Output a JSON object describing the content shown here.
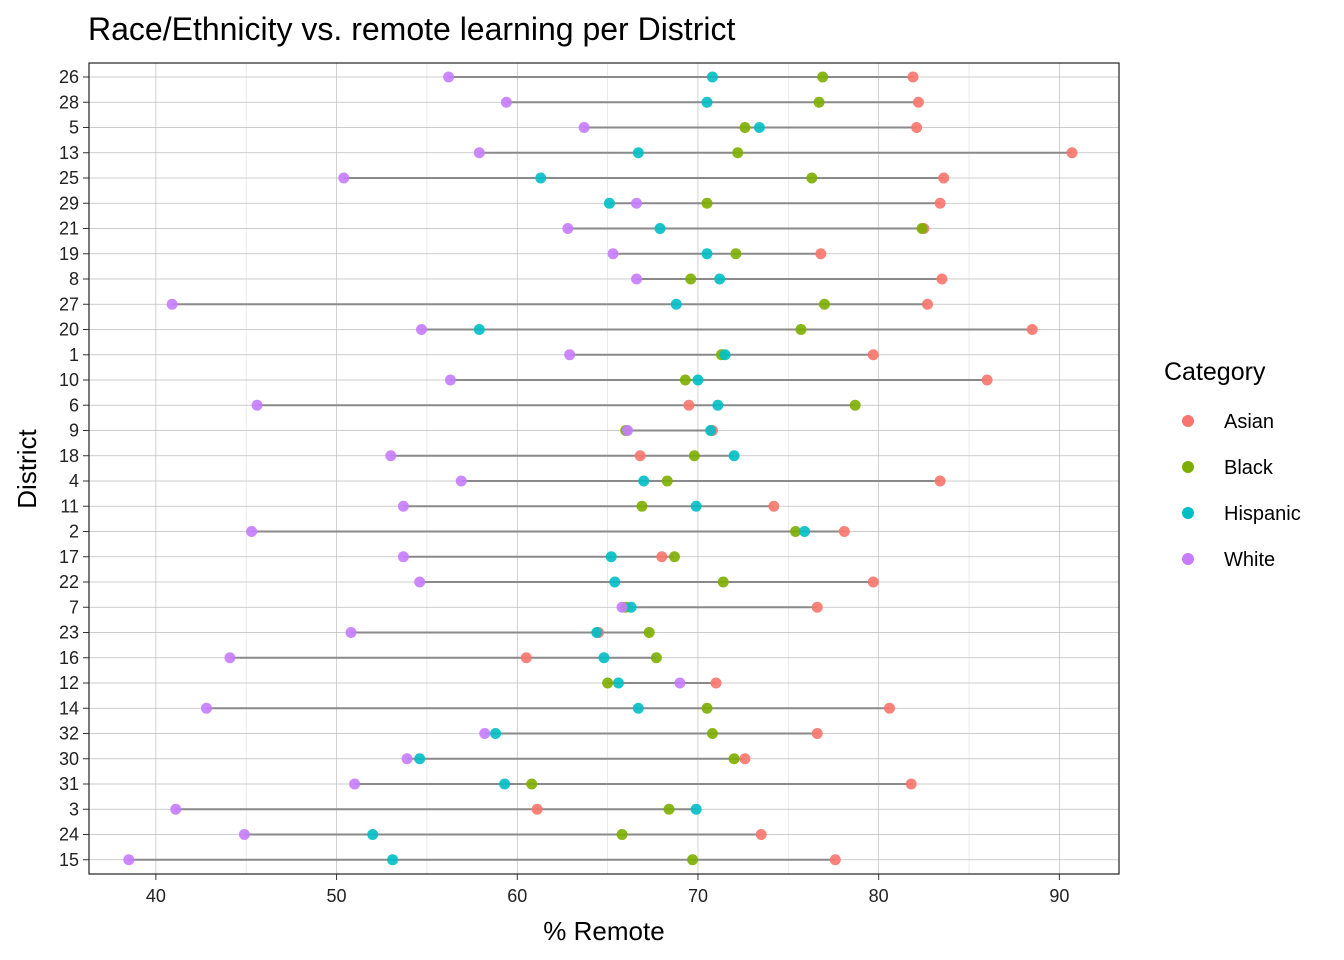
{
  "chart_data": {
    "type": "scatter",
    "title": "Race/Ethnicity vs. remote learning per District",
    "xlabel": "% Remote",
    "ylabel": "District",
    "xlim": [
      36.3,
      93.3
    ],
    "x_ticks": [
      40,
      50,
      60,
      70,
      80,
      90
    ],
    "grid": true,
    "legend": {
      "title": "Category",
      "placement": "right",
      "entries": [
        {
          "name": "Asian",
          "color": "#F8766D"
        },
        {
          "name": "Black",
          "color": "#7CAE00"
        },
        {
          "name": "Hispanic",
          "color": "#00BFC4"
        },
        {
          "name": "White",
          "color": "#C77CFF"
        }
      ]
    },
    "categories": [
      "26",
      "28",
      "5",
      "13",
      "25",
      "29",
      "21",
      "19",
      "8",
      "27",
      "20",
      "1",
      "10",
      "6",
      "9",
      "18",
      "4",
      "11",
      "2",
      "17",
      "22",
      "7",
      "23",
      "16",
      "12",
      "14",
      "32",
      "30",
      "31",
      "3",
      "24",
      "15"
    ],
    "series": [
      {
        "name": "Asian",
        "color": "#F8766D",
        "values": [
          81.9,
          82.2,
          82.1,
          90.7,
          83.6,
          83.4,
          82.5,
          76.8,
          83.5,
          82.7,
          88.5,
          79.7,
          86.0,
          69.5,
          70.8,
          66.8,
          83.4,
          74.2,
          78.1,
          68.0,
          79.7,
          76.6,
          64.5,
          60.5,
          71.0,
          80.6,
          76.6,
          72.6,
          81.8,
          61.1,
          73.5,
          77.6
        ]
      },
      {
        "name": "Black",
        "color": "#7CAE00",
        "values": [
          76.9,
          76.7,
          72.6,
          72.2,
          76.3,
          70.5,
          82.4,
          72.1,
          69.6,
          77.0,
          75.7,
          71.3,
          69.3,
          78.7,
          66.0,
          69.8,
          68.3,
          66.9,
          75.4,
          68.7,
          71.4,
          66.0,
          67.3,
          67.7,
          65.0,
          70.5,
          70.8,
          72.0,
          60.8,
          68.4,
          65.8,
          69.7
        ]
      },
      {
        "name": "Hispanic",
        "color": "#00BFC4",
        "values": [
          70.8,
          70.5,
          73.4,
          66.7,
          61.3,
          65.1,
          67.9,
          70.5,
          71.2,
          68.8,
          57.9,
          71.5,
          70.0,
          71.1,
          70.7,
          72.0,
          67.0,
          69.9,
          75.9,
          65.2,
          65.4,
          66.3,
          64.4,
          64.8,
          65.6,
          66.7,
          58.8,
          54.6,
          59.3,
          69.9,
          52.0,
          53.1
        ]
      },
      {
        "name": "White",
        "color": "#C77CFF",
        "values": [
          56.2,
          59.4,
          63.7,
          57.9,
          50.4,
          66.6,
          62.8,
          65.3,
          66.6,
          40.9,
          54.7,
          62.9,
          56.3,
          45.6,
          66.1,
          53.0,
          56.9,
          53.7,
          45.3,
          53.7,
          54.6,
          65.8,
          50.8,
          44.1,
          69.0,
          42.8,
          58.2,
          53.9,
          51.0,
          41.1,
          44.9,
          38.5
        ]
      }
    ]
  }
}
